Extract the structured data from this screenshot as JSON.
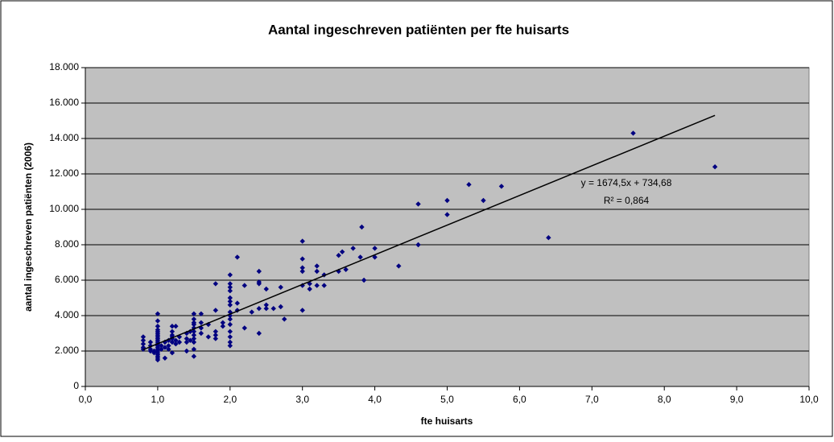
{
  "chart_data": {
    "type": "scatter",
    "title": "Aantal ingeschreven patiënten per fte huisarts",
    "x_label": "fte huisarts",
    "y_label": "aantal ingeschreven patiënten (2006)",
    "color": "#000080",
    "trendline": {
      "equation": "y = 1674,5x + 734,68",
      "r2": "R² = 0,864",
      "slope": 1674.5,
      "intercept": 734.68,
      "color": "#000000"
    },
    "xlim": [
      0,
      10
    ],
    "ylim": [
      0,
      18000
    ],
    "xticks": [
      {
        "value": 0,
        "label": "0,0"
      },
      {
        "value": 1,
        "label": "1,0"
      },
      {
        "value": 2,
        "label": "2,0"
      },
      {
        "value": 3,
        "label": "3,0"
      },
      {
        "value": 4,
        "label": "4,0"
      },
      {
        "value": 5,
        "label": "5,0"
      },
      {
        "value": 6,
        "label": "6,0"
      },
      {
        "value": 7,
        "label": "7,0"
      },
      {
        "value": 8,
        "label": "8,0"
      },
      {
        "value": 9,
        "label": "9,0"
      },
      {
        "value": 10,
        "label": "10,0"
      }
    ],
    "yticks": [
      0,
      {
        "value": 2000,
        "label": "2.000"
      },
      {
        "value": 4000,
        "label": "4.000"
      },
      {
        "value": 6000,
        "label": "6.000"
      },
      {
        "value": 8000,
        "label": "8.000"
      },
      {
        "value": 10000,
        "label": "10.000"
      },
      {
        "value": 12000,
        "label": "12.000"
      },
      {
        "value": 14000,
        "label": "14.000"
      },
      {
        "value": 16000,
        "label": "16.000"
      },
      {
        "value": 18000,
        "label": "18.000"
      }
    ],
    "grid": true,
    "x": [
      0.8,
      0.8,
      0.8,
      0.8,
      0.8,
      0.9,
      0.9,
      0.9,
      0.9,
      0.95,
      0.95,
      1,
      1,
      1,
      1,
      1,
      1,
      1,
      1,
      1,
      1,
      1,
      1,
      1,
      1,
      1,
      1,
      1,
      1,
      1,
      1,
      1,
      1.05,
      1.05,
      1.1,
      1.1,
      1.1,
      1.15,
      1.15,
      1.15,
      1.2,
      1.2,
      1.2,
      1.2,
      1.2,
      1.2,
      1.2,
      1.25,
      1.25,
      1.25,
      1.3,
      1.3,
      1.4,
      1.4,
      1.4,
      1.4,
      1.45,
      1.45,
      1.5,
      1.5,
      1.5,
      1.5,
      1.5,
      1.5,
      1.5,
      1.5,
      1.5,
      1.5,
      1.5,
      1.6,
      1.6,
      1.6,
      1.6,
      1.7,
      1.7,
      1.8,
      1.8,
      1.8,
      1.8,
      1.8,
      1.9,
      1.9,
      2,
      2,
      2,
      2,
      2,
      2,
      2,
      2,
      2,
      2,
      2,
      2,
      2,
      2,
      2,
      2.1,
      2.1,
      2.1,
      2.2,
      2.2,
      2.3,
      2.4,
      2.4,
      2.4,
      2.4,
      2.4,
      2.5,
      2.5,
      2.5,
      2.6,
      2.7,
      2.7,
      2.75,
      3,
      3,
      3,
      3,
      3,
      3,
      3.1,
      3.1,
      3.2,
      3.2,
      3.2,
      3.3,
      3.3,
      3.5,
      3.5,
      3.55,
      3.6,
      3.7,
      3.8,
      3.82,
      3.85,
      4,
      4,
      4.33,
      4.6,
      4.6,
      5,
      5,
      5.3,
      5.5,
      5.75,
      6.4,
      7.57,
      8.7
    ],
    "values": [
      2800,
      2600,
      2400,
      2200,
      2100,
      2500,
      2300,
      2100,
      2000,
      1900,
      2000,
      4100,
      3700,
      3400,
      3200,
      3100,
      3000,
      2900,
      2800,
      2700,
      2600,
      2500,
      2400,
      2300,
      2200,
      2100,
      2000,
      1900,
      1800,
      1700,
      1600,
      1500,
      2300,
      2100,
      1600,
      2200,
      2500,
      2600,
      2300,
      2100,
      3400,
      3100,
      2900,
      2700,
      2500,
      1900,
      2800,
      3400,
      2600,
      2400,
      2500,
      2800,
      3000,
      2700,
      2500,
      2000,
      3100,
      2600,
      4100,
      3800,
      3600,
      3500,
      3300,
      3100,
      2900,
      2700,
      2500,
      2100,
      1700,
      4100,
      3600,
      3300,
      3000,
      3500,
      2800,
      5800,
      4300,
      3100,
      2900,
      2700,
      3400,
      3600,
      6300,
      5800,
      5600,
      5400,
      5000,
      4800,
      4600,
      4200,
      4000,
      3800,
      3500,
      3100,
      2800,
      2500,
      2300,
      7300,
      4700,
      4300,
      5700,
      3300,
      4200,
      6500,
      5900,
      5800,
      4400,
      3000,
      4600,
      4400,
      5500,
      4400,
      5600,
      4500,
      3800,
      8200,
      7200,
      6700,
      6500,
      5700,
      4300,
      5800,
      5500,
      6800,
      6500,
      5700,
      6300,
      5700,
      7400,
      6500,
      7600,
      6600,
      7800,
      7300,
      9000,
      6000,
      7800,
      7300,
      6800,
      10300,
      8000,
      10500,
      9700,
      11400,
      10500,
      11300,
      8400,
      14300,
      12400
    ]
  }
}
